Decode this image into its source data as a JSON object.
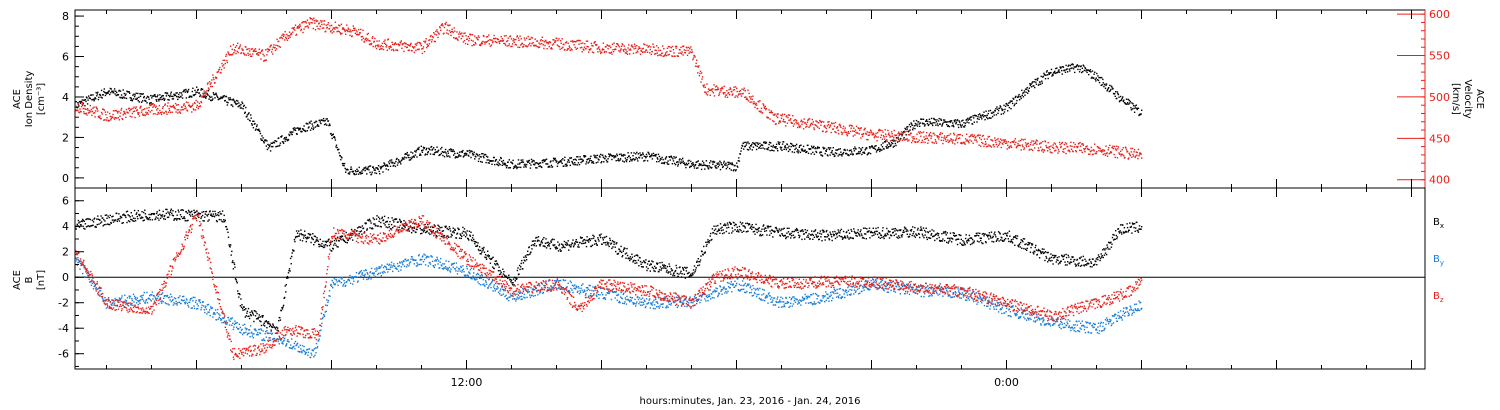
{
  "chart_data": [
    {
      "type": "scatter",
      "xlabel": "hours:minutes, Jan. 23, 2016 - Jan. 24, 2016",
      "x_tick_labels": [
        "12:00",
        "0:00"
      ],
      "x_tick_hours": [
        12,
        24
      ],
      "xlim_hours": [
        3.3,
        33.3
      ],
      "data_end_hour": 27.0,
      "left_axis": {
        "label_lines": [
          "ACE",
          "Ion Density",
          "[cm⁻³]"
        ],
        "ylim": [
          -0.5,
          8.3
        ],
        "ticks": [
          0,
          2,
          4,
          6,
          8
        ],
        "color": "#000000"
      },
      "right_axis": {
        "label_lines": [
          "ACE",
          "Velocity",
          "[km/s]"
        ],
        "ylim": [
          390,
          605
        ],
        "ticks": [
          400,
          450,
          500,
          550,
          600
        ],
        "color": "#e8201a"
      },
      "series": [
        {
          "name": "",
          "color": "#000000",
          "axis": "left",
          "knots": [
            [
              3.3,
              3.6
            ],
            [
              4,
              4.3
            ],
            [
              5,
              3.9
            ],
            [
              6,
              4.3
            ],
            [
              7,
              3.6
            ],
            [
              7.6,
              1.5
            ],
            [
              8.3,
              2.5
            ],
            [
              8.9,
              2.8
            ],
            [
              9.3,
              0.4
            ],
            [
              10,
              0.4
            ],
            [
              10.6,
              1.0
            ],
            [
              11,
              1.4
            ],
            [
              12,
              1.2
            ],
            [
              13,
              0.7
            ],
            [
              14,
              0.8
            ],
            [
              15,
              1.0
            ],
            [
              16,
              1.1
            ],
            [
              17,
              0.7
            ],
            [
              18,
              0.6
            ],
            [
              18.1,
              1.6
            ],
            [
              19,
              1.6
            ],
            [
              20,
              1.3
            ],
            [
              21,
              1.4
            ],
            [
              21.5,
              1.8
            ],
            [
              22,
              2.8
            ],
            [
              23,
              2.7
            ],
            [
              24,
              3.5
            ],
            [
              24.5,
              4.5
            ],
            [
              25,
              5.3
            ],
            [
              25.6,
              5.5
            ],
            [
              26,
              5.0
            ],
            [
              26.5,
              4.0
            ],
            [
              27,
              3.2
            ]
          ]
        },
        {
          "name": "",
          "color": "#e8201a",
          "axis": "right",
          "knots": [
            [
              3.3,
              490
            ],
            [
              4,
              478
            ],
            [
              5,
              485
            ],
            [
              6,
              490
            ],
            [
              6.8,
              560
            ],
            [
              7.5,
              550
            ],
            [
              8,
              575
            ],
            [
              8.5,
              590
            ],
            [
              9.5,
              580
            ],
            [
              10,
              565
            ],
            [
              11,
              560
            ],
            [
              11.5,
              585
            ],
            [
              12,
              570
            ],
            [
              13,
              568
            ],
            [
              14,
              565
            ],
            [
              15,
              560
            ],
            [
              16,
              558
            ],
            [
              17,
              555
            ],
            [
              17.3,
              510
            ],
            [
              18.2,
              505
            ],
            [
              18.8,
              475
            ],
            [
              20,
              465
            ],
            [
              21,
              455
            ],
            [
              22,
              452
            ],
            [
              23,
              450
            ],
            [
              24,
              445
            ],
            [
              25,
              440
            ],
            [
              26,
              438
            ],
            [
              27,
              430
            ]
          ]
        }
      ]
    },
    {
      "type": "scatter",
      "left_axis": {
        "label_lines": [
          "ACE",
          "B",
          "[nT]"
        ],
        "ylim": [
          -7.2,
          7.0
        ],
        "ticks": [
          -6,
          -4,
          -2,
          0,
          2,
          4,
          6
        ],
        "color": "#000000"
      },
      "zero_line": true,
      "series": [
        {
          "name": "Bx",
          "name_parts": [
            "B",
            "x"
          ],
          "color": "#000000",
          "knots": [
            [
              3.3,
              4.0
            ],
            [
              4,
              4.6
            ],
            [
              5,
              5.0
            ],
            [
              6,
              4.9
            ],
            [
              6.6,
              4.8
            ],
            [
              7,
              -2.5
            ],
            [
              7.8,
              -4.0
            ],
            [
              8.2,
              3.5
            ],
            [
              9,
              2.5
            ],
            [
              10,
              4.5
            ],
            [
              11,
              3.8
            ],
            [
              12,
              3.5
            ],
            [
              13,
              -0.5
            ],
            [
              13.5,
              3.0
            ],
            [
              14,
              2.5
            ],
            [
              15,
              3.0
            ],
            [
              16,
              1.0
            ],
            [
              17,
              0.3
            ],
            [
              17.5,
              3.8
            ],
            [
              18,
              4.0
            ],
            [
              19,
              3.5
            ],
            [
              20,
              3.3
            ],
            [
              21,
              3.5
            ],
            [
              22,
              3.6
            ],
            [
              23,
              3.0
            ],
            [
              24,
              3.3
            ],
            [
              25,
              1.5
            ],
            [
              26,
              1.2
            ],
            [
              26.5,
              3.8
            ],
            [
              27,
              4.0
            ]
          ]
        },
        {
          "name": "By",
          "name_parts": [
            "B",
            "y"
          ],
          "color": "#1a7ed8",
          "knots": [
            [
              3.3,
              1.5
            ],
            [
              4,
              -2.0
            ],
            [
              5,
              -1.5
            ],
            [
              6,
              -2.0
            ],
            [
              7,
              -4.0
            ],
            [
              8,
              -5.0
            ],
            [
              8.6,
              -6.0
            ],
            [
              9,
              -0.5
            ],
            [
              10,
              0.5
            ],
            [
              11,
              1.5
            ],
            [
              12,
              0.5
            ],
            [
              13,
              -1.5
            ],
            [
              14,
              -0.5
            ],
            [
              15,
              -1.2
            ],
            [
              16,
              -2.0
            ],
            [
              17,
              -1.8
            ],
            [
              18,
              -0.5
            ],
            [
              19,
              -2.0
            ],
            [
              20,
              -1.5
            ],
            [
              21,
              -0.5
            ],
            [
              22,
              -1.0
            ],
            [
              23,
              -1.2
            ],
            [
              24,
              -2.5
            ],
            [
              25,
              -3.5
            ],
            [
              26,
              -4.0
            ],
            [
              27,
              -2.0
            ]
          ]
        },
        {
          "name": "Bz",
          "name_parts": [
            "B",
            "z"
          ],
          "color": "#e8201a",
          "knots": [
            [
              3.3,
              2.0
            ],
            [
              4,
              -2.0
            ],
            [
              5,
              -2.5
            ],
            [
              6,
              5.0
            ],
            [
              6.8,
              -6.0
            ],
            [
              7.5,
              -5.5
            ],
            [
              8,
              -4.0
            ],
            [
              8.7,
              -4.5
            ],
            [
              9,
              3.5
            ],
            [
              10,
              3.0
            ],
            [
              11,
              4.5
            ],
            [
              12,
              1.5
            ],
            [
              13,
              -1.0
            ],
            [
              14,
              -0.5
            ],
            [
              14.5,
              -2.5
            ],
            [
              15,
              -0.5
            ],
            [
              16,
              -1.0
            ],
            [
              17,
              -2.0
            ],
            [
              17.5,
              0.0
            ],
            [
              18,
              0.5
            ],
            [
              19,
              -0.5
            ],
            [
              20,
              -0.3
            ],
            [
              21,
              -0.3
            ],
            [
              22,
              -0.8
            ],
            [
              23,
              -1.0
            ],
            [
              24,
              -2.0
            ],
            [
              25,
              -3.0
            ],
            [
              26,
              -2.0
            ],
            [
              26.8,
              -1.0
            ],
            [
              27,
              0.0
            ]
          ]
        }
      ]
    }
  ]
}
